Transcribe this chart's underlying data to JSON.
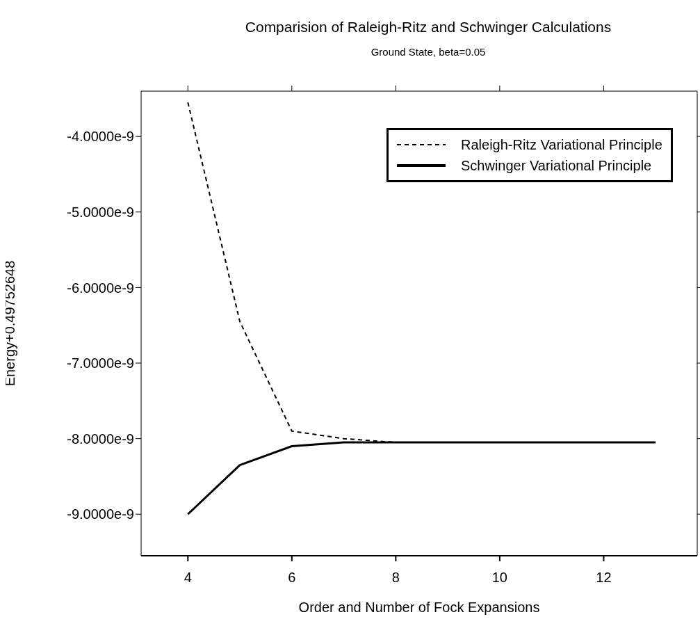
{
  "chart_data": {
    "type": "line",
    "title": "Comparision of Raleigh-Ritz and Schwinger Calculations",
    "subtitle": "Ground State, beta=0.05",
    "xlabel": "Order and Number of Fock Expansions",
    "ylabel": "Energy+0.49752648",
    "x": [
      4,
      5,
      6,
      7,
      8,
      9,
      10,
      11,
      12,
      13
    ],
    "series": [
      {
        "name": "Raleigh-Ritz Variational Principle",
        "color": "#000000",
        "line_style": "dashed",
        "values": [
          -3.55e-09,
          -6.45e-09,
          -7.9e-09,
          -8e-09,
          -8.05e-09,
          -8.05e-09,
          -8.05e-09,
          -8.05e-09,
          -8.05e-09,
          -8.05e-09
        ]
      },
      {
        "name": "Schwinger Variational Principle",
        "color": "#000000",
        "line_style": "solid",
        "values": [
          -9e-09,
          -8.35e-09,
          -8.1e-09,
          -8.05e-09,
          -8.05e-09,
          -8.05e-09,
          -8.05e-09,
          -8.05e-09,
          -8.05e-09,
          -8.05e-09
        ]
      }
    ],
    "xlim": [
      3.1,
      13.8
    ],
    "xticks": [
      4,
      6,
      8,
      10,
      12
    ],
    "ylim": [
      -9.55e-09,
      -3.4e-09
    ],
    "yticks": [
      {
        "value": -4e-09,
        "label": "-4.0000e-9"
      },
      {
        "value": -5e-09,
        "label": "-5.0000e-9"
      },
      {
        "value": -6e-09,
        "label": "-6.0000e-9"
      },
      {
        "value": -7e-09,
        "label": "-7.0000e-9"
      },
      {
        "value": -8e-09,
        "label": "-8.0000e-9"
      },
      {
        "value": -9e-09,
        "label": "-9.0000e-9"
      }
    ],
    "grid": false,
    "legend": "top right",
    "marker": "none"
  }
}
